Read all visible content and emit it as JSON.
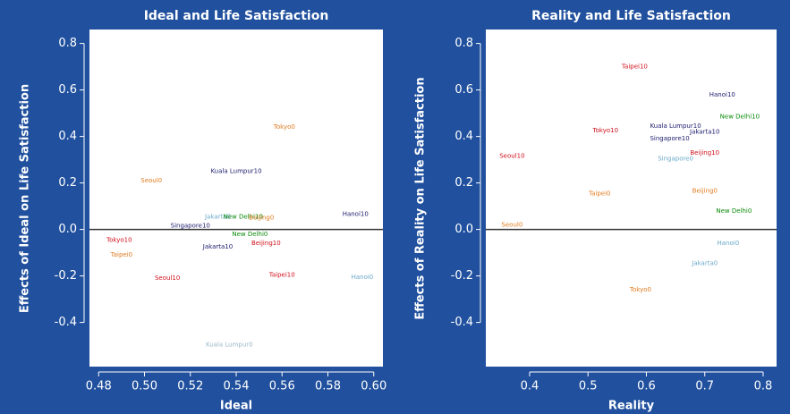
{
  "chart_data": [
    {
      "type": "scatter",
      "title": "Ideal and Life Satisfaction",
      "xlabel": "Ideal",
      "ylabel": "Effects of Ideal on Life Satisfaction",
      "xlim": [
        0.476,
        0.604
      ],
      "ylim": [
        -0.59,
        0.86
      ],
      "xticks": [
        0.48,
        {
          "value": 0.5,
          "label": "0.50"
        },
        0.52,
        0.54,
        0.56,
        0.58,
        {
          "value": 0.6,
          "label": "0.60"
        }
      ],
      "yticks": [
        -0.4,
        -0.2,
        {
          "value": 0,
          "label": "0.0"
        },
        0.2,
        0.4,
        0.6,
        0.8
      ],
      "labels": [
        "Tokyo0",
        "Seoul0",
        "Kuala Lumpur10",
        "Hanoi10",
        "Jakarta0",
        "New Delhi10",
        "Beijing0",
        "Singapore10",
        "New Delhi0",
        "Jakarta10",
        "Beijing10",
        "Tokyo10",
        "Taipei0",
        "Seoul10",
        "Taipei10",
        "Hanoi0",
        "Kuala Lumpur0"
      ],
      "x": [
        0.561,
        0.503,
        0.54,
        0.592,
        0.532,
        0.543,
        0.551,
        0.52,
        0.546,
        0.532,
        0.553,
        0.489,
        0.49,
        0.51,
        0.56,
        0.595,
        0.537
      ],
      "values": [
        0.44,
        0.21,
        0.25,
        0.065,
        0.055,
        0.055,
        0.05,
        0.015,
        -0.02,
        -0.075,
        -0.06,
        -0.045,
        -0.11,
        -0.21,
        -0.195,
        -0.205,
        -0.495
      ],
      "colors": [
        "#e07b20",
        "#e07b20",
        "#1a1a6e",
        "#1a1a6e",
        "#6aa9c9",
        "#0a8a0a",
        "#e07b20",
        "#1a1a6e",
        "#0a8a0a",
        "#1a1a6e",
        "#d0101c",
        "#d0101c",
        "#e07b20",
        "#d0101c",
        "#d0101c",
        "#6aa9c9",
        "#9ab8c8"
      ]
    },
    {
      "type": "scatter",
      "title": "Reality and Life Satisfaction",
      "xlabel": "Reality",
      "ylabel": "Effects of Reality on Life Satisfaction",
      "xlim": [
        0.325,
        0.823
      ],
      "ylim": [
        -0.59,
        0.86
      ],
      "xticks": [
        0.4,
        0.5,
        0.6,
        0.7,
        0.8
      ],
      "yticks": [
        -0.4,
        -0.2,
        {
          "value": 0,
          "label": "0.0"
        },
        0.2,
        0.4,
        0.6,
        0.8
      ],
      "labels": [
        "Taipei10",
        "Hanoi10",
        "New Delhi10",
        "Kuala Lumpur10",
        "Jakarta10",
        "Tokyo10",
        "Singapore10",
        "Beijing10",
        "Seoul10",
        "Singapore0",
        "Taipei0",
        "Beijing0",
        "New Delhi0",
        "Seoul0",
        "Hanoi0",
        "Jakarta0",
        "Tokyo0"
      ],
      "x": [
        0.58,
        0.73,
        0.76,
        0.65,
        0.7,
        0.53,
        0.64,
        0.7,
        0.37,
        0.65,
        0.52,
        0.7,
        0.75,
        0.37,
        0.74,
        0.7,
        0.59
      ],
      "values": [
        0.7,
        0.58,
        0.485,
        0.445,
        0.42,
        0.425,
        0.39,
        0.33,
        0.315,
        0.305,
        0.155,
        0.165,
        0.08,
        0.02,
        -0.06,
        -0.145,
        -0.26
      ],
      "colors": [
        "#d0101c",
        "#1a1a6e",
        "#0a8a0a",
        "#1a1a6e",
        "#1a1a6e",
        "#d0101c",
        "#1a1a6e",
        "#d0101c",
        "#d0101c",
        "#6aa9c9",
        "#e07b20",
        "#e07b20",
        "#0a8a0a",
        "#e07b20",
        "#6aa9c9",
        "#6aa9c9",
        "#e07b20"
      ]
    }
  ]
}
